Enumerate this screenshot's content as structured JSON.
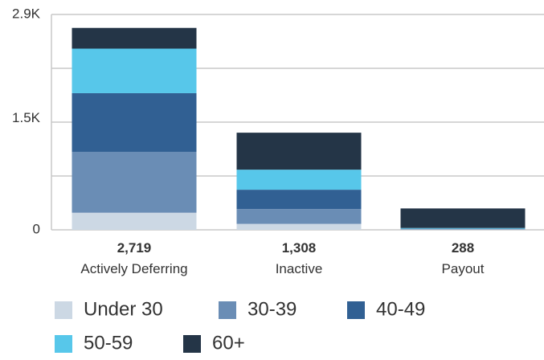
{
  "chart_data": {
    "type": "bar",
    "stacked": true,
    "categories": [
      "Actively Deferring",
      "Inactive",
      "Payout"
    ],
    "totals": [
      "2,719",
      "1,308",
      "288"
    ],
    "series": [
      {
        "name": "Under 30",
        "color": "#ccd8e4",
        "values": [
          230,
          80,
          5
        ]
      },
      {
        "name": "30-39",
        "color": "#6a8db5",
        "values": [
          820,
          200,
          5
        ]
      },
      {
        "name": "40-49",
        "color": "#316093",
        "values": [
          790,
          260,
          5
        ]
      },
      {
        "name": "50-59",
        "color": "#57c7ea",
        "values": [
          600,
          270,
          10
        ]
      },
      {
        "name": "60+",
        "color": "#243547",
        "values": [
          279,
          498,
          263
        ]
      }
    ],
    "yticks": [
      {
        "value": 0,
        "label": "0"
      },
      {
        "value": 1500,
        "label": "1.5K"
      },
      {
        "value": 2900,
        "label": "2.9K"
      }
    ],
    "ylim": [
      0,
      2900
    ],
    "gridlines": [
      0,
      725,
      1450,
      2175,
      2900
    ],
    "grid": true,
    "legend_position": "bottom"
  }
}
